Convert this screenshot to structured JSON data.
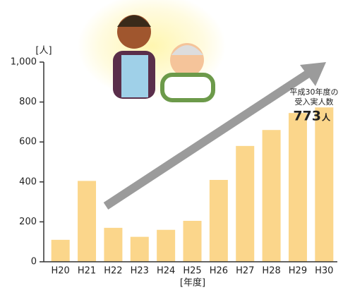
{
  "chart_data": {
    "type": "bar",
    "y_label": "[人]",
    "x_label": "[年度]",
    "categories": [
      "H20",
      "H21",
      "H22",
      "H23",
      "H24",
      "H25",
      "H26",
      "H27",
      "H28",
      "H29",
      "H30"
    ],
    "values": [
      110,
      405,
      170,
      125,
      160,
      205,
      410,
      580,
      660,
      745,
      773
    ],
    "color": "#fbd68b",
    "ylim": [
      0,
      1000
    ],
    "yticks": [
      0,
      200,
      400,
      600,
      800,
      {
        "value": 1000,
        "label": "1,000"
      }
    ],
    "annotation": {
      "text": [
        "平成30年度の",
        "受入実人数"
      ],
      "value": "773",
      "unit": "人"
    }
  }
}
